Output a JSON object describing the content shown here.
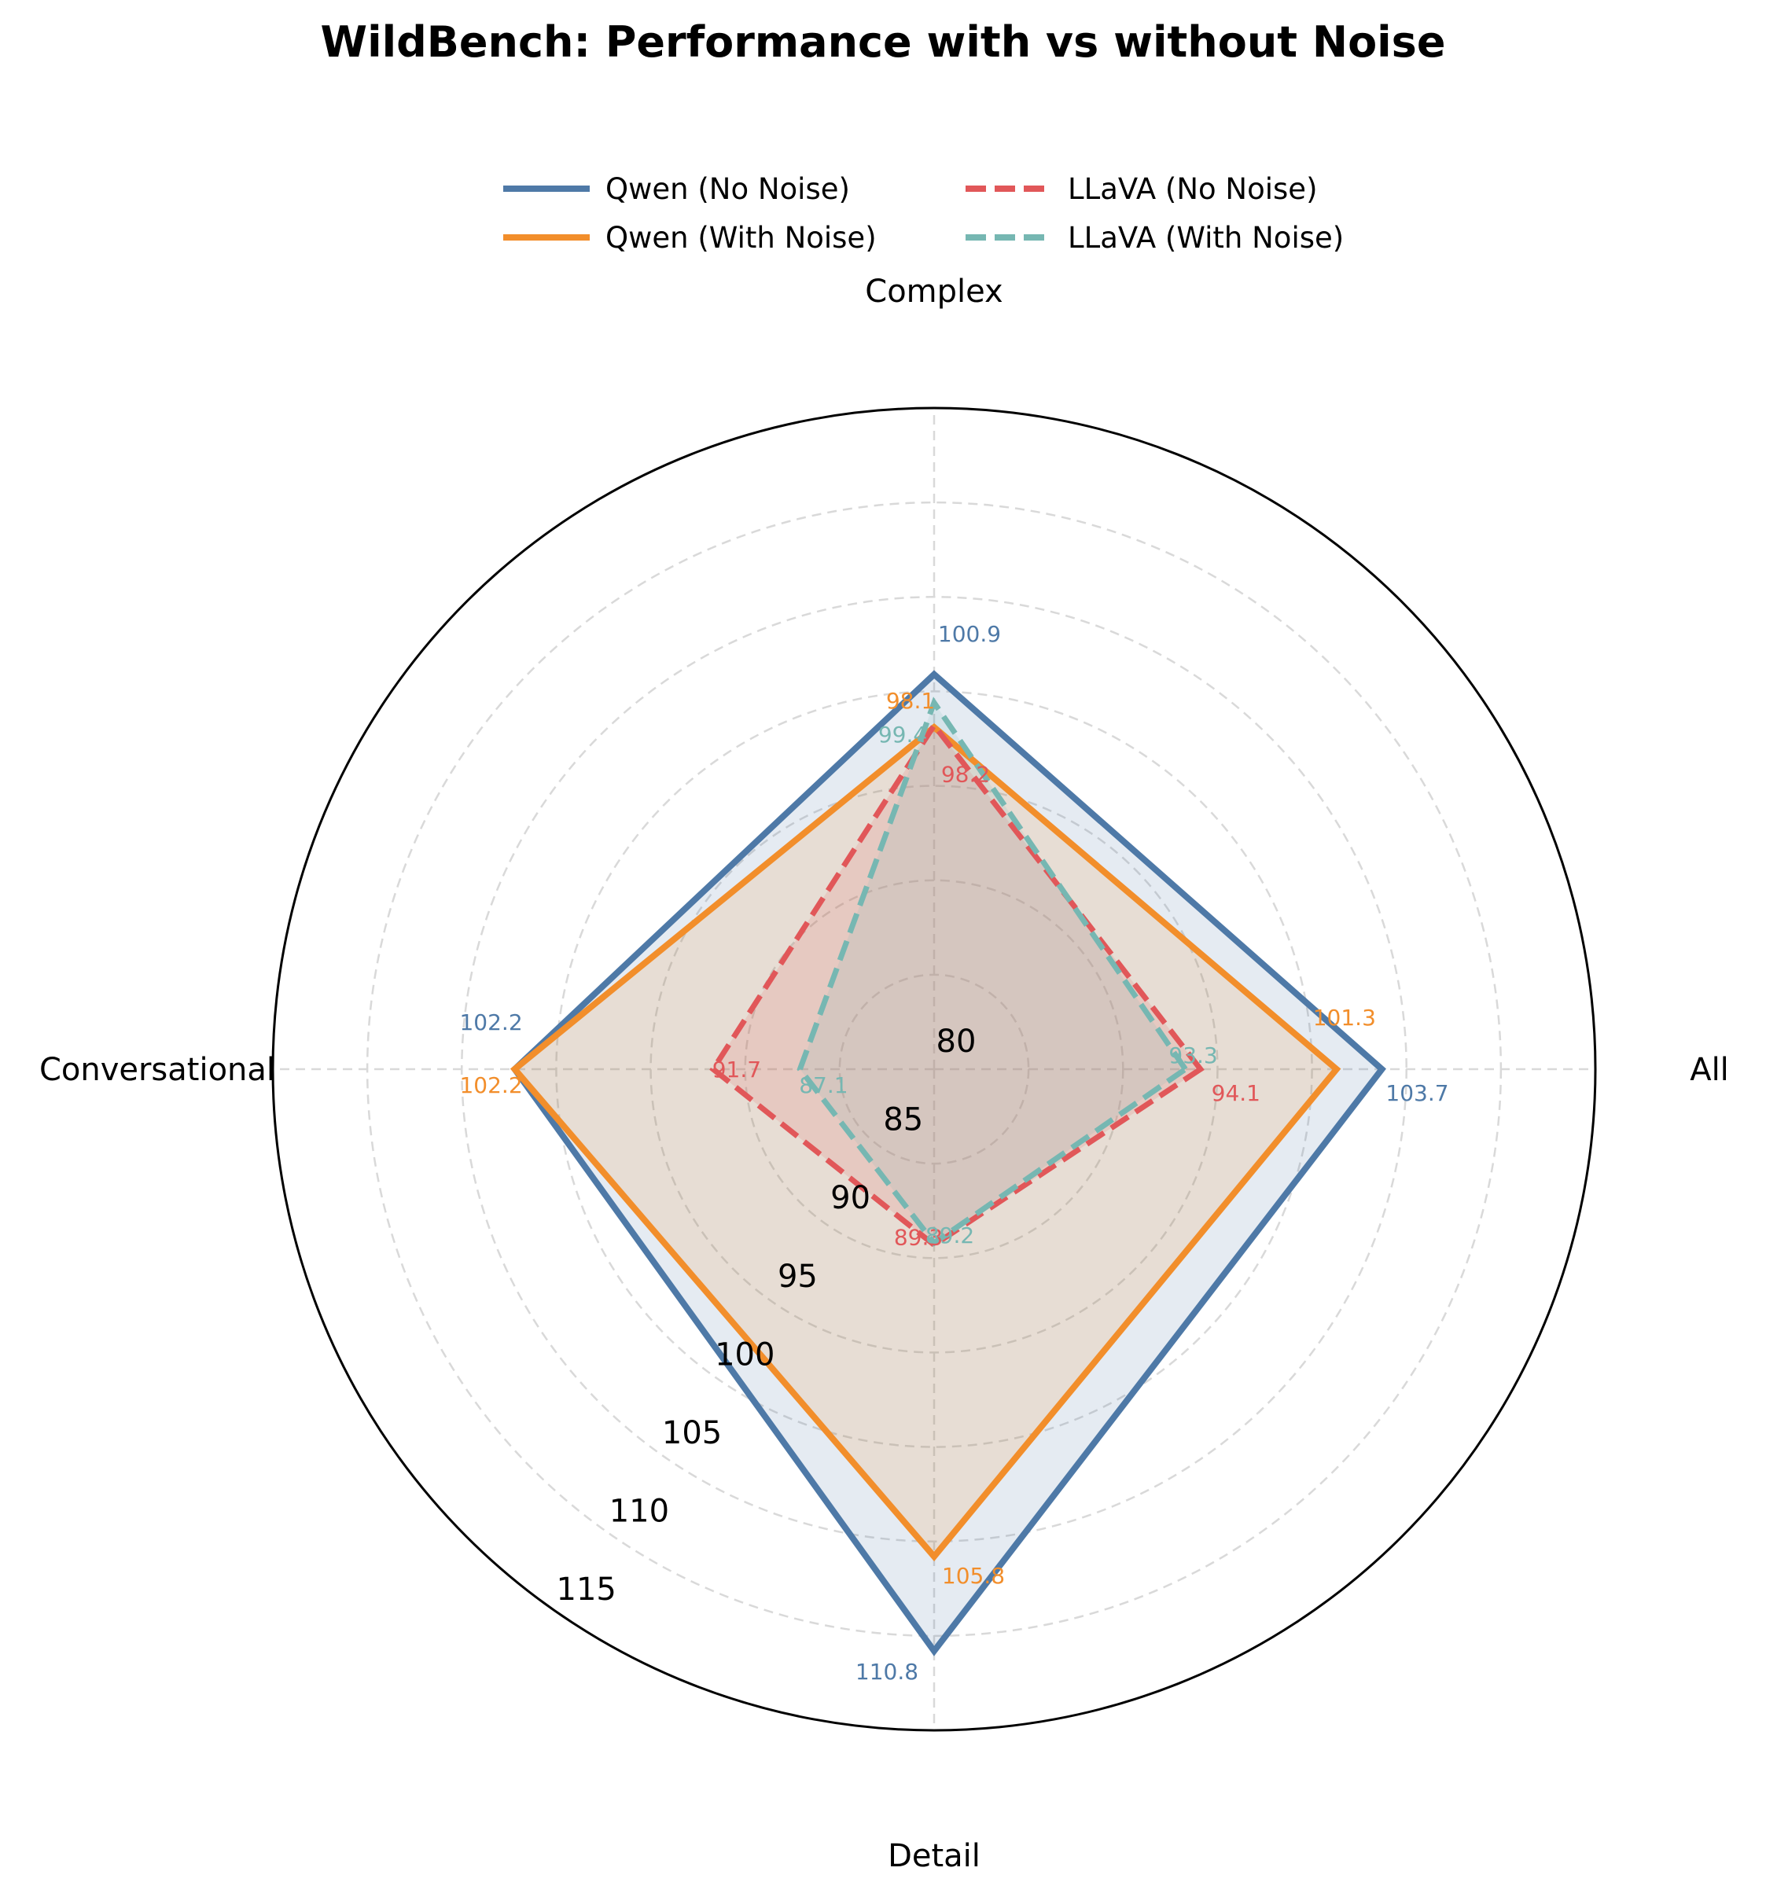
{
  "chart_data": {
    "type": "radar",
    "title": "WildBench: Performance with vs without Noise",
    "categories": [
      "All",
      "Complex",
      "Conversational",
      "Detail"
    ],
    "rlim": [
      80,
      115
    ],
    "rticks": [
      "80",
      "85",
      "90",
      "95",
      "100",
      "105",
      "110",
      "115"
    ],
    "grid": true,
    "legend_position": "top-center",
    "series": [
      {
        "name": "Qwen (No Noise)",
        "values": [
          103.7,
          100.9,
          102.2,
          110.8
        ],
        "color": "#4e79a7",
        "style": "solid",
        "fill": true
      },
      {
        "name": "Qwen (With Noise)",
        "values": [
          101.3,
          98.1,
          102.2,
          105.8
        ],
        "color": "#f28e2b",
        "style": "solid",
        "fill": true
      },
      {
        "name": "LLaVA (No Noise)",
        "values": [
          94.1,
          98.2,
          91.7,
          89.3
        ],
        "color": "#e15759",
        "style": "dashed",
        "fill": true
      },
      {
        "name": "LLaVA (With Noise)",
        "values": [
          93.3,
          99.4,
          87.1,
          89.2
        ],
        "color": "#76b7b2",
        "style": "dashed",
        "fill": true
      }
    ]
  }
}
